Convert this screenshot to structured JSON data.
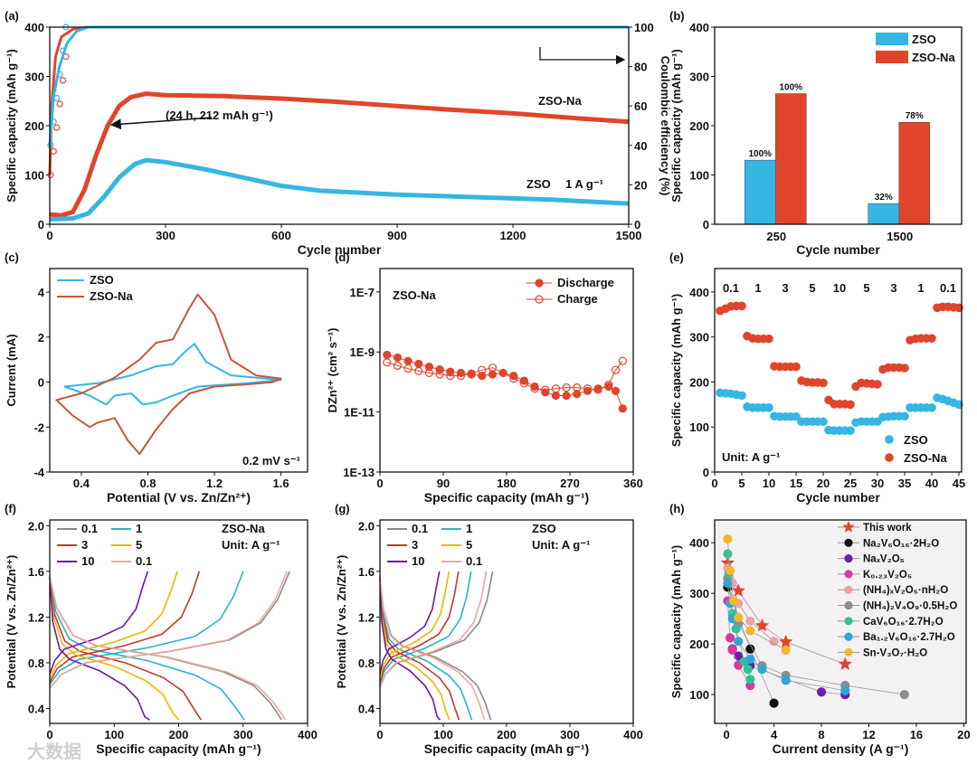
{
  "watermark": "大数据",
  "colors": {
    "zso": "#35b6e3",
    "zso_na": "#e0452b"
  },
  "chart_data": [
    {
      "id": "a",
      "label": "(a)",
      "type": "line",
      "xlabel": "Cycle number",
      "ylabel": "Specific capacity (mAh g⁻¹)",
      "y2label": "Coulombic efficiency (%)",
      "xlim": [
        0,
        1500
      ],
      "ylim": [
        0,
        400
      ],
      "y2lim": [
        0,
        100
      ],
      "xticks": [
        0,
        300,
        600,
        900,
        1200,
        1500
      ],
      "yticks": [
        0,
        100,
        200,
        300,
        400
      ],
      "y2ticks": [
        0,
        20,
        40,
        60,
        80,
        100
      ],
      "series": [
        {
          "name": "ZSO-Na",
          "color": "#e0452b",
          "x": [
            0,
            30,
            60,
            90,
            120,
            150,
            180,
            210,
            250,
            300,
            450,
            600,
            750,
            900,
            1050,
            1200,
            1350,
            1500
          ],
          "y": [
            20,
            18,
            25,
            70,
            140,
            200,
            240,
            258,
            265,
            262,
            260,
            255,
            248,
            240,
            232,
            225,
            216,
            208
          ]
        },
        {
          "name": "ZSO",
          "color": "#35b6e3",
          "x": [
            0,
            60,
            100,
            140,
            180,
            220,
            250,
            300,
            400,
            500,
            600,
            700,
            900,
            1100,
            1300,
            1500
          ],
          "y": [
            10,
            12,
            22,
            55,
            95,
            122,
            130,
            126,
            112,
            95,
            78,
            68,
            60,
            55,
            50,
            42
          ]
        },
        {
          "name": "CE ZSO-Na",
          "axis": "y2",
          "color": "#e0452b",
          "x": [
            0,
            5,
            15,
            30,
            60,
            100,
            1500
          ],
          "y": [
            25,
            60,
            85,
            95,
            99,
            100,
            100
          ]
        },
        {
          "name": "CE ZSO",
          "axis": "y2",
          "color": "#35b6e3",
          "x": [
            0,
            10,
            25,
            45,
            70,
            100,
            1500
          ],
          "y": [
            40,
            65,
            80,
            92,
            98,
            100,
            100
          ]
        }
      ],
      "annotations": {
        "arrow_label": "(24 h, 212 mAh g⁻¹)",
        "zso_na": "ZSO-Na",
        "zso": "ZSO",
        "rate": "1 A g⁻¹"
      }
    },
    {
      "id": "b",
      "label": "(b)",
      "type": "bar",
      "xlabel": "Cycle number",
      "ylabel": "Specific capacity (mAh g⁻¹)",
      "categories": [
        "250",
        "1500"
      ],
      "ylim": [
        0,
        400
      ],
      "yticks": [
        0,
        100,
        200,
        300,
        400
      ],
      "series": [
        {
          "name": "ZSO",
          "color": "#35b6e3",
          "values": [
            130,
            42
          ],
          "labels": [
            "100%",
            "32%"
          ]
        },
        {
          "name": "ZSO-Na",
          "color": "#e0452b",
          "values": [
            265,
            207
          ],
          "labels": [
            "100%",
            "78%"
          ]
        }
      ],
      "legend": "top-right"
    },
    {
      "id": "c",
      "label": "(c)",
      "type": "line",
      "xlabel": "Potential (V vs. Zn/Zn²⁺)",
      "ylabel": "Current (mA)",
      "xlim": [
        0.21,
        1.76
      ],
      "ylim": [
        -4,
        5.05
      ],
      "xticks": [
        0.4,
        0.8,
        1.2,
        1.6
      ],
      "yticks": [
        -4,
        -2,
        0,
        2,
        4
      ],
      "series": [
        {
          "name": "ZSO",
          "color": "#35b6e3",
          "x": [
            0.3,
            0.5,
            0.7,
            0.85,
            0.95,
            1.03,
            1.08,
            1.15,
            1.3,
            1.6,
            1.4,
            1.1,
            0.95,
            0.85,
            0.77,
            0.7,
            0.6,
            0.55,
            0.45,
            0.3
          ],
          "y": [
            -0.2,
            -0.05,
            0.3,
            0.7,
            0.8,
            1.4,
            1.7,
            0.9,
            0.3,
            0.1,
            -0.05,
            -0.2,
            -0.6,
            -0.9,
            -1.0,
            -0.5,
            -0.6,
            -1.0,
            -0.6,
            -0.2
          ]
        },
        {
          "name": "ZSO-Na",
          "color": "#c8553d",
          "x": [
            0.25,
            0.4,
            0.6,
            0.75,
            0.85,
            0.95,
            1.05,
            1.1,
            1.2,
            1.3,
            1.45,
            1.6,
            1.55,
            1.4,
            1.2,
            1.05,
            0.95,
            0.85,
            0.75,
            0.68,
            0.6,
            0.5,
            0.45,
            0.35,
            0.25
          ],
          "y": [
            -0.8,
            -0.5,
            0.2,
            1.0,
            1.75,
            1.9,
            3.3,
            3.9,
            3.0,
            1.0,
            0.3,
            0.15,
            0,
            -0.1,
            -0.2,
            -0.5,
            -1.2,
            -2.1,
            -3.2,
            -2.6,
            -1.6,
            -1.8,
            -2.0,
            -1.5,
            -0.8
          ]
        }
      ],
      "legend": "top-left",
      "annotation": "0.2 mV s⁻¹"
    },
    {
      "id": "d",
      "label": "(d)",
      "type": "scatter",
      "xlabel": "Specific capacity (mAh g⁻¹)",
      "ylabel": "DZn²⁺ (cm² s⁻¹)",
      "yscale": "log",
      "xlim": [
        0,
        360
      ],
      "ylim": [
        1e-13,
        6e-07
      ],
      "xticks": [
        0,
        90,
        180,
        270,
        360
      ],
      "yticks": [
        1e-13,
        1e-11,
        1e-09,
        1e-07
      ],
      "yticklabels": [
        "1E-13",
        "1E-11",
        "1E-9",
        "1E-7"
      ],
      "series": [
        {
          "name": "Discharge",
          "color": "#e0452b",
          "filled": true,
          "x": [
            10,
            25,
            40,
            55,
            70,
            85,
            100,
            115,
            130,
            145,
            160,
            175,
            190,
            205,
            220,
            235,
            250,
            265,
            280,
            295,
            310,
            325,
            335,
            345
          ],
          "y": [
            8e-10,
            6.5e-10,
            5e-10,
            4e-10,
            3.2e-10,
            2.6e-10,
            2.2e-10,
            2e-10,
            1.8e-10,
            1.6e-10,
            1.8e-10,
            2e-10,
            1.6e-10,
            1.1e-10,
            7e-11,
            4.5e-11,
            3.5e-11,
            3.5e-11,
            4e-11,
            5e-11,
            6e-11,
            7e-11,
            5e-11,
            1.3e-11
          ]
        },
        {
          "name": "Charge",
          "color": "#e0452b",
          "filled": false,
          "x": [
            10,
            25,
            40,
            55,
            70,
            85,
            100,
            115,
            130,
            145,
            160,
            175,
            190,
            205,
            220,
            235,
            250,
            265,
            280,
            295,
            310,
            325,
            335,
            345
          ],
          "y": [
            4.5e-10,
            3.5e-10,
            2.8e-10,
            2.3e-10,
            2e-10,
            1.8e-10,
            1.6e-10,
            1.6e-10,
            1.9e-10,
            2.5e-10,
            3e-10,
            2e-10,
            1.3e-10,
            9e-11,
            6e-11,
            5.5e-11,
            6e-11,
            6.5e-11,
            6.5e-11,
            6e-11,
            5.5e-11,
            8e-11,
            2.5e-10,
            5e-10
          ]
        }
      ],
      "legend": "top-right",
      "annotation": "ZSO-Na"
    },
    {
      "id": "e",
      "label": "(e)",
      "type": "scatter",
      "xlabel": "Cycle number",
      "ylabel": "Specific capacity (mAh g⁻¹)",
      "xlim": [
        0,
        45.5
      ],
      "ylim": [
        0,
        452
      ],
      "xticks": [
        0,
        5,
        10,
        15,
        20,
        25,
        30,
        35,
        40,
        45
      ],
      "yticks": [
        0,
        100,
        200,
        300,
        400
      ],
      "rates": [
        "0.1",
        "1",
        "3",
        "5",
        "10",
        "5",
        "3",
        "1",
        "0.1"
      ],
      "series": [
        {
          "name": "ZSO",
          "color": "#35b6e3",
          "values": [
            176,
            175,
            174,
            172,
            170,
            145,
            143,
            143,
            143,
            143,
            124,
            123,
            123,
            123,
            123,
            112,
            112,
            112,
            112,
            112,
            93,
            92,
            92,
            92,
            92,
            110,
            112,
            112,
            112,
            112,
            122,
            123,
            124,
            124,
            124,
            143,
            143,
            143,
            143,
            143,
            165,
            162,
            158,
            154,
            150
          ]
        },
        {
          "name": "ZSO-Na",
          "color": "#e0452b",
          "values": [
            358,
            363,
            368,
            369,
            369,
            302,
            297,
            296,
            296,
            296,
            235,
            234,
            234,
            234,
            234,
            203,
            200,
            199,
            199,
            198,
            160,
            151,
            151,
            151,
            150,
            190,
            198,
            197,
            196,
            195,
            228,
            232,
            232,
            232,
            231,
            293,
            296,
            297,
            297,
            297,
            365,
            367,
            367,
            366,
            365
          ]
        }
      ],
      "legend": "bottom-right",
      "annotation": "Unit: A g⁻¹"
    },
    {
      "id": "f",
      "label": "(f)",
      "type": "line",
      "xlabel": "Specific capacity (mAh g⁻¹)",
      "ylabel": "Potential (V vs. Zn/Zn²⁺)",
      "xlim": [
        0,
        400
      ],
      "ylim": [
        0.27,
        2.05
      ],
      "xticks": [
        0,
        100,
        200,
        300,
        400
      ],
      "yticks": [
        0.4,
        0.8,
        1.2,
        1.6,
        2.0
      ],
      "yticklabels": [
        "0.4",
        "0.8",
        "1.2",
        "1.6",
        "2.0"
      ],
      "series": [
        {
          "name": "0.1",
          "color": "#8a8a8a",
          "discharge": 360,
          "charge": 372
        },
        {
          "name": "1",
          "color": "#2bb3c9",
          "discharge": 302,
          "charge": 300
        },
        {
          "name": "3",
          "color": "#c0392b",
          "discharge": 235,
          "charge": 232
        },
        {
          "name": "5",
          "color": "#e6b800",
          "discharge": 200,
          "charge": 198
        },
        {
          "name": "10",
          "color": "#6a1b9a",
          "discharge": 155,
          "charge": 152
        },
        {
          "name": "0.1",
          "color": "#e8a9a0",
          "discharge": 366,
          "charge": 368
        }
      ],
      "legend": "top-left",
      "title": "ZSO-Na",
      "annotation": "Unit: A g⁻¹"
    },
    {
      "id": "g",
      "label": "(g)",
      "type": "line",
      "xlabel": "Specific capacity (mAh g⁻¹)",
      "ylabel": "Potential (V vs. Zn/Zn²⁺)",
      "xlim": [
        0,
        400
      ],
      "ylim": [
        0.27,
        2.05
      ],
      "xticks": [
        0,
        100,
        200,
        300,
        400
      ],
      "yticks": [
        0.4,
        0.8,
        1.2,
        1.6,
        2.0
      ],
      "yticklabels": [
        "0.4",
        "0.8",
        "1.2",
        "1.6",
        "2.0"
      ],
      "series": [
        {
          "name": "0.1",
          "color": "#8a8a8a",
          "discharge": 175,
          "charge": 178
        },
        {
          "name": "1",
          "color": "#2bb3c9",
          "discharge": 145,
          "charge": 144
        },
        {
          "name": "3",
          "color": "#c0392b",
          "discharge": 125,
          "charge": 124
        },
        {
          "name": "5",
          "color": "#e6b800",
          "discharge": 110,
          "charge": 109
        },
        {
          "name": "10",
          "color": "#6a1b9a",
          "discharge": 95,
          "charge": 94
        },
        {
          "name": "0.1",
          "color": "#e8a9a0",
          "discharge": 165,
          "charge": 168
        }
      ],
      "legend": "top-left",
      "title": "ZSO",
      "annotation": "Unit: A g⁻¹"
    },
    {
      "id": "h",
      "label": "(h)",
      "type": "scatter",
      "xlabel": "Current density (A g⁻¹)",
      "ylabel": "Specific capacity (mAh g⁻¹)",
      "xlim": [
        -1,
        20.2
      ],
      "ylim": [
        43,
        445
      ],
      "xticks": [
        0,
        4,
        8,
        12,
        16,
        20
      ],
      "yticks": [
        100,
        200,
        300,
        400
      ],
      "series": [
        {
          "name": "This work",
          "color": "#e0452b",
          "marker": "star",
          "x": [
            0.1,
            1,
            3,
            5,
            10
          ],
          "y": [
            360,
            305,
            236,
            204,
            160
          ]
        },
        {
          "name": "Na₂V₆O₁₆·2H₂O",
          "color": "#111111",
          "x": [
            0.1,
            2,
            4
          ],
          "y": [
            312,
            190,
            83
          ]
        },
        {
          "name": "NaₓV₂O₅",
          "color": "#6a1fb0",
          "x": [
            0.5,
            1,
            2,
            8,
            10
          ],
          "y": [
            190,
            176,
            157,
            105,
            100
          ]
        },
        {
          "name": "K₀.₂₃V₂O₅",
          "color": "#d63aa0",
          "x": [
            0.1,
            0.3,
            0.5,
            1,
            2
          ],
          "y": [
            285,
            212,
            188,
            158,
            118
          ]
        },
        {
          "name": "(NH₄)ₓV₂O₅·nH₂O",
          "color": "#eea2a2",
          "x": [
            0.1,
            0.5,
            1,
            2,
            4
          ],
          "y": [
            350,
            320,
            280,
            245,
            205
          ]
        },
        {
          "name": "(NH₄)₂V₄O₉·0.5H₂O",
          "color": "#8c8c8c",
          "x": [
            0.1,
            1,
            3,
            5,
            10,
            15
          ],
          "y": [
            330,
            240,
            157,
            138,
            118,
            100
          ]
        },
        {
          "name": "CaV₆O₁₆·2.7H₂O",
          "color": "#2ec49a",
          "x": [
            0.1,
            0.2,
            0.5,
            0.8,
            1.5,
            1.8,
            2
          ],
          "y": [
            378,
            340,
            260,
            230,
            165,
            150,
            130
          ]
        },
        {
          "name": "Ba₁.₂V₆O₁₆·2.7H₂O",
          "color": "#2aa8d8",
          "x": [
            0.1,
            0.3,
            0.5,
            1,
            2,
            3,
            5,
            10
          ],
          "y": [
            320,
            280,
            250,
            205,
            170,
            150,
            128,
            108
          ]
        },
        {
          "name": "Sn-V₃O₇·H₂O",
          "color": "#f0b92a",
          "x": [
            0.1,
            0.3,
            0.6,
            1,
            2,
            5
          ],
          "y": [
            407,
            345,
            285,
            252,
            226,
            188
          ]
        }
      ],
      "legend": "top-right"
    }
  ]
}
